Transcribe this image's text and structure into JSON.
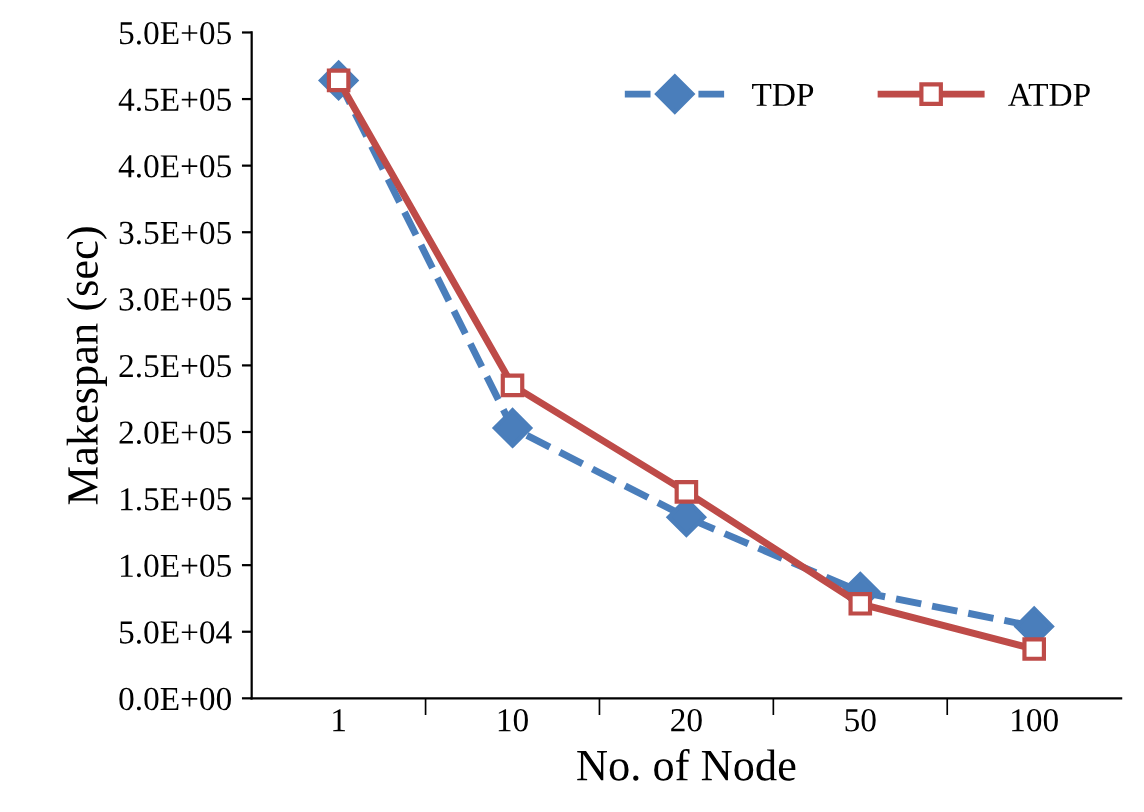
{
  "chart_data": {
    "type": "line",
    "xlabel": "No. of Node",
    "ylabel": "Makespan (sec)",
    "categories": [
      "1",
      "10",
      "20",
      "50",
      "100"
    ],
    "series": [
      {
        "name": "TDP",
        "color": "#4a7ebb",
        "marker": "diamond",
        "line_style": "dashed",
        "values": [
          464000,
          203000,
          136000,
          80000,
          54000
        ]
      },
      {
        "name": "ATDP",
        "color": "#be4b48",
        "marker": "square",
        "line_style": "solid",
        "values": [
          464000,
          235000,
          155000,
          71000,
          37000
        ]
      }
    ],
    "ylim": [
      0,
      500000
    ],
    "yticks": [
      {
        "value": 0,
        "label": "0.0E+00"
      },
      {
        "value": 50000,
        "label": "5.0E+04"
      },
      {
        "value": 100000,
        "label": "1.0E+05"
      },
      {
        "value": 150000,
        "label": "1.5E+05"
      },
      {
        "value": 200000,
        "label": "2.0E+05"
      },
      {
        "value": 250000,
        "label": "2.5E+05"
      },
      {
        "value": 300000,
        "label": "3.0E+05"
      },
      {
        "value": 350000,
        "label": "3.5E+05"
      },
      {
        "value": 400000,
        "label": "4.0E+05"
      },
      {
        "value": 450000,
        "label": "4.5E+05"
      },
      {
        "value": 500000,
        "label": "5.0E+05"
      }
    ],
    "legend": "top right",
    "grid": false
  }
}
